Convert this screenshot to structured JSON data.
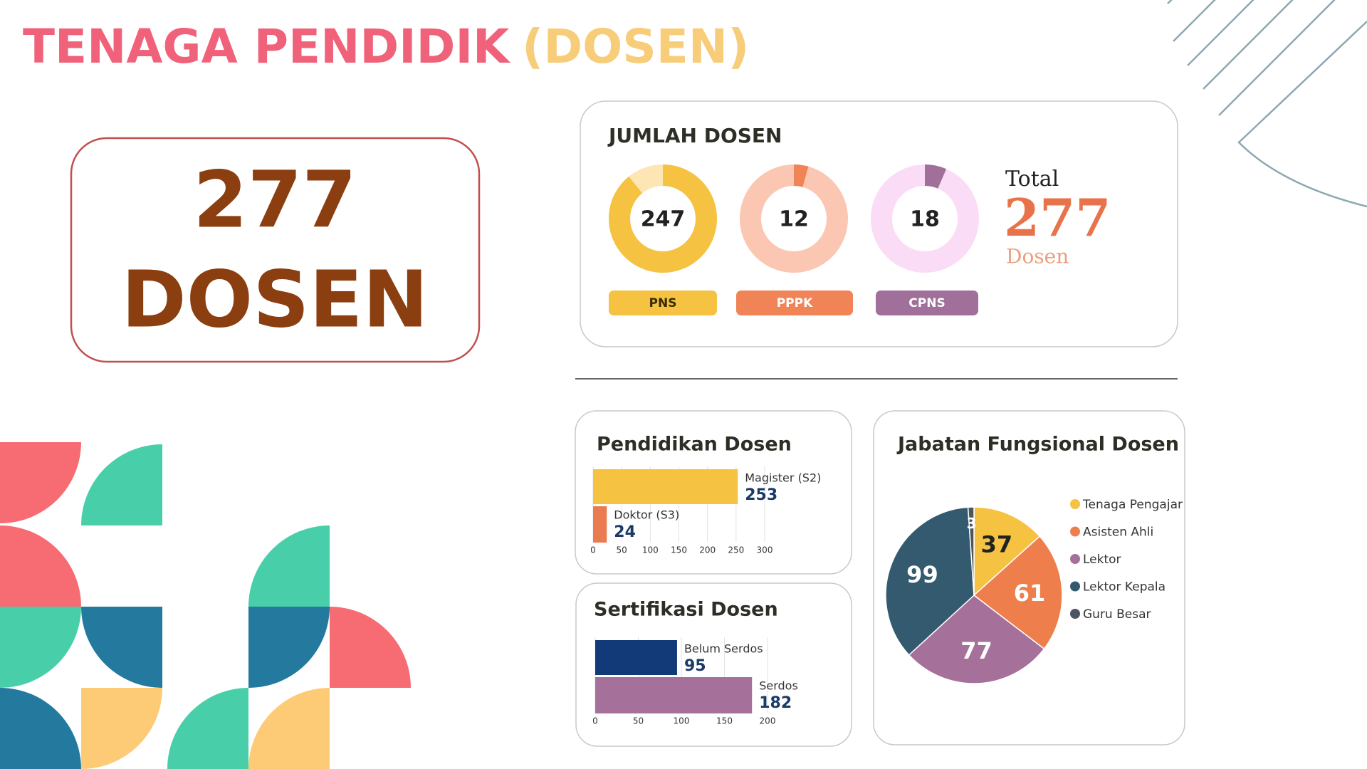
{
  "header": {
    "title_main": "TENAGA PENDIDIK",
    "title_accent": "(DOSEN)"
  },
  "summary": {
    "value": 277,
    "label": "DOSEN"
  },
  "chart_data": [
    {
      "type": "donut",
      "title": "JUMLAH DOSEN",
      "categories": [
        "PNS",
        "PPPK",
        "CPNS"
      ],
      "values": [
        247,
        12,
        18
      ],
      "colors": [
        "#f5c242",
        "#f08457",
        "#a0709a"
      ],
      "track_colors": [
        "#fde6b3",
        "#fbc6b2",
        "#fbdcf6"
      ],
      "total_label": "Total",
      "total": 277,
      "total_unit": "Dosen"
    },
    {
      "type": "barh",
      "title": "Pendidikan Dosen",
      "categories": [
        "Magister (S2)",
        "Doktor (S3)"
      ],
      "values": [
        253,
        24
      ],
      "colors": [
        "#f5c242",
        "#ea7a4f"
      ],
      "xlim": [
        0,
        300
      ],
      "xticks": [
        0,
        50,
        100,
        150,
        200,
        250,
        300
      ],
      "grid": true
    },
    {
      "type": "barh",
      "title": "Sertifikasi Dosen",
      "categories": [
        "Belum Serdos",
        "Serdos"
      ],
      "values": [
        95,
        182
      ],
      "colors": [
        "#123a78",
        "#a5719b"
      ],
      "xlim": [
        0,
        200
      ],
      "xticks": [
        0,
        50,
        100,
        150,
        200
      ],
      "grid": true
    },
    {
      "type": "pie",
      "title": "Jabatan Fungsional Dosen",
      "categories": [
        "Tenaga Pengajar",
        "Asisten Ahli",
        "Lektor",
        "Lektor Kepala",
        "Guru Besar"
      ],
      "values": [
        37,
        61,
        77,
        99,
        3
      ],
      "colors": [
        "#f5c242",
        "#ee7f4d",
        "#a5719b",
        "#345a70",
        "#4d5560"
      ]
    }
  ]
}
